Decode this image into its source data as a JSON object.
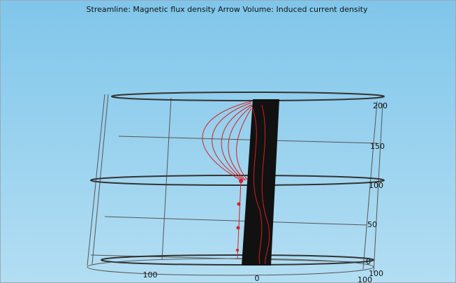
{
  "title": "Streamline: Magnetic flux density  Arrow Volume: Induced current density",
  "z_axis": {
    "ticks": [
      "200",
      "150",
      "100",
      "50",
      "0"
    ]
  },
  "x_axis": {
    "ticks": [
      "100",
      "0"
    ]
  },
  "y_axis": {
    "ticks": [
      "100",
      "100"
    ]
  }
}
